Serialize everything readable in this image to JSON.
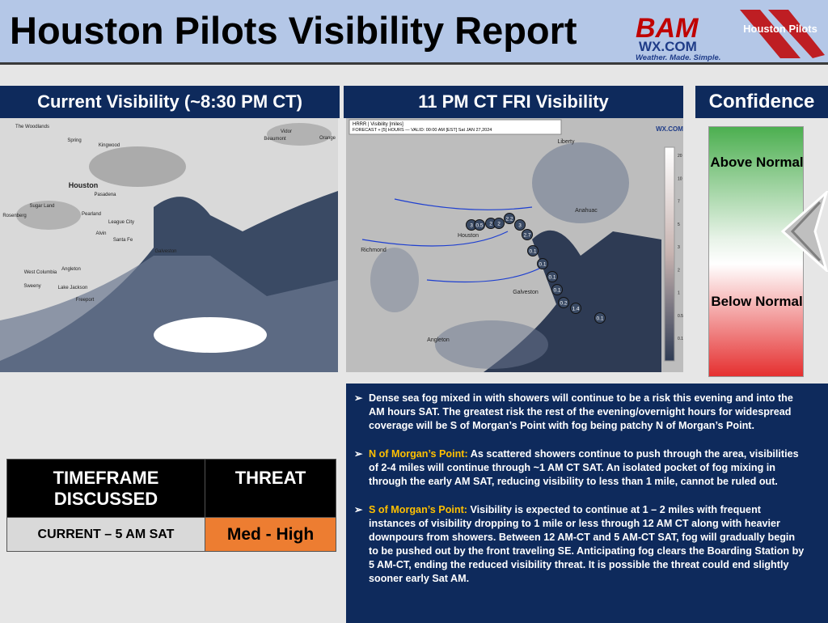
{
  "header": {
    "title": "Houston Pilots Visibility Report",
    "bam_logo": {
      "brand": "BAM",
      "site": "WX.COM",
      "tagline": "Weather. Made. Simple."
    },
    "pilots_logo": "Houston Pilots"
  },
  "panels": {
    "current": {
      "title": "Current Visibility (~8:30 PM CT)",
      "map_labels": [
        "The Woodlands",
        "Spring",
        "Kingwood",
        "Vidor",
        "Beaumont",
        "Orange",
        "Houston",
        "Pasadena",
        "Sugar Land",
        "Rosenberg",
        "Pearland",
        "League City",
        "Alvin",
        "Santa Fe",
        "Galveston",
        "West Columbia",
        "Angleton",
        "Sweeny",
        "Lake Jackson",
        "Freeport"
      ]
    },
    "forecast": {
      "title": "11 PM CT FRI Visibility",
      "model": "HRRR | Visibility [miles]",
      "valid": "FORECAST + [5] HOURS — VALID: 00:00 AM [EST] Sat JAN 27,2024",
      "watermark": "WX.COM",
      "map_labels": [
        "Liberty",
        "Anahuac",
        "Houston",
        "Richmond",
        "Galveston",
        "Angleton"
      ],
      "points": [
        "3",
        "0.5",
        "2",
        "2",
        "2.2",
        "3",
        "2.7",
        "0.1",
        "0.1",
        "0.1",
        "0.1",
        "0.2",
        "1.4",
        "0.1"
      ],
      "legend": [
        "20",
        "10",
        "7",
        "5",
        "3",
        "2",
        "1",
        "0.5",
        "0.1"
      ]
    }
  },
  "confidence": {
    "title": "Confidence",
    "above": "Above Normal",
    "below": "Below Normal"
  },
  "table": {
    "headers": [
      "TIMEFRAME DISCUSSED",
      "THREAT"
    ],
    "rows": [
      [
        "CURRENT – 5 AM SAT",
        "Med - High"
      ]
    ]
  },
  "bullets": [
    {
      "text": "Dense sea fog mixed in with showers will continue to be a risk this evening and into the AM hours SAT. The greatest risk the rest of the evening/overnight hours for widespread coverage will be S of Morgan’s Point with fog being patchy N of Morgan’s Point."
    },
    {
      "lead": "N of Morgan’s Point:",
      "text": "As scattered showers continue to push through the area, visibilities of 2-4 miles will continue through ~1 AM CT SAT. An isolated pocket of fog mixing in through the early AM SAT, reducing visibility to less than 1 mile, cannot be ruled out."
    },
    {
      "lead": "S of Morgan’s Point:",
      "text": "Visibility is expected to continue at 1 – 2 miles with frequent instances of visibility dropping to 1 mile or less through 12 AM CT along with heavier downpours from showers. Between 12 AM-CT and 5 AM-CT SAT, fog will gradually begin to be pushed out by the front traveling SE. Anticipating fog clears the Boarding Station by 5 AM-CT, ending the reduced visibility threat. It is possible the threat could end slightly sooner early Sat AM."
    }
  ]
}
